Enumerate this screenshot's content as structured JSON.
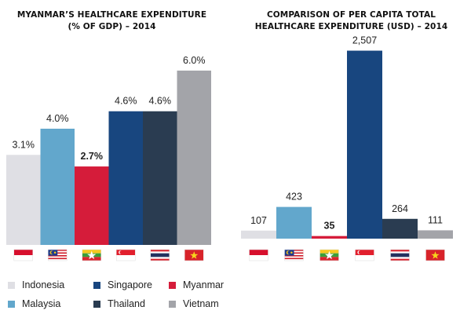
{
  "colors": {
    "Indonesia": "#dfdfe4",
    "Malaysia": "#62a7cc",
    "Myanmar": "#d51c3a",
    "Singapore": "#18467f",
    "Thailand": "#2a3c51",
    "Vietnam": "#a3a4a9"
  },
  "flags": [
    "indonesia-flag-icon",
    "malaysia-flag-icon",
    "myanmar-flag-icon",
    "singapore-flag-icon",
    "thailand-flag-icon",
    "vietnam-flag-icon"
  ],
  "chart_data": [
    {
      "type": "bar",
      "title_lines": [
        "MYANMAR’S HEALTHCARE EXPENDITURE",
        "(% OF GDP) – 2014"
      ],
      "categories": [
        "Indonesia",
        "Malaysia",
        "Myanmar",
        "Singapore",
        "Thailand",
        "Vietnam"
      ],
      "values": [
        3.1,
        4.0,
        2.7,
        4.6,
        4.6,
        6.0
      ],
      "labels": [
        "3.1%",
        "4.0%",
        "2.7%",
        "4.6%",
        "4.6%",
        "6.0%"
      ],
      "highlight": "Myanmar",
      "ylim": [
        0,
        7.7
      ]
    },
    {
      "type": "bar",
      "title_lines": [
        "COMPARISON OF PER CAPITA TOTAL",
        "HEALTHCARE EXPENDITURE (USD) – 2014"
      ],
      "categories": [
        "Indonesia",
        "Malaysia",
        "Myanmar",
        "Singapore",
        "Thailand",
        "Vietnam"
      ],
      "values": [
        107,
        423,
        35,
        2507,
        264,
        111
      ],
      "labels": [
        "107",
        "423",
        "35",
        "2,507",
        "264",
        "111"
      ],
      "highlight": "Myanmar",
      "ylim": [
        0,
        2900
      ]
    }
  ],
  "legend": [
    {
      "name": "Indonesia"
    },
    {
      "name": "Singapore"
    },
    {
      "name": "Myanmar"
    },
    {
      "name": "Malaysia"
    },
    {
      "name": "Thailand"
    },
    {
      "name": "Vietnam"
    }
  ]
}
